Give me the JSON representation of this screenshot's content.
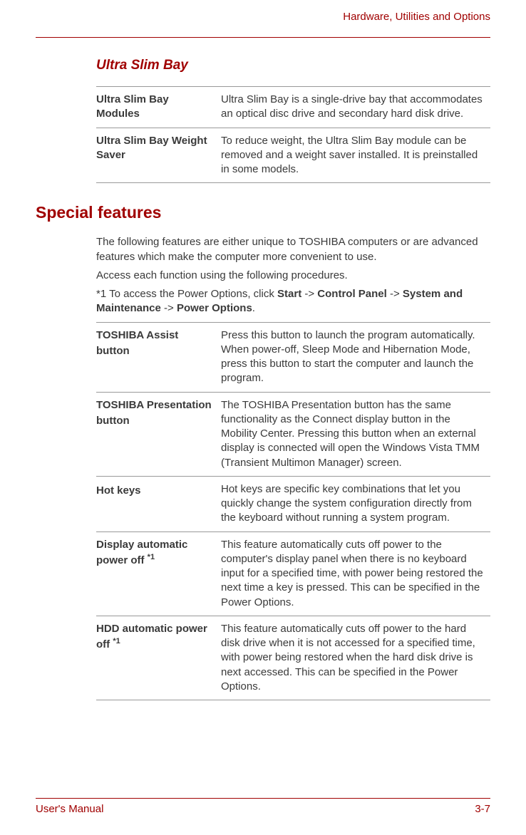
{
  "header": {
    "chapter": "Hardware, Utilities and Options"
  },
  "colors": {
    "accent": "#a00000",
    "body_text": "#3a3a3a",
    "table_border": "#999999",
    "background": "#ffffff"
  },
  "typography": {
    "body_fontsize": 15,
    "h2_fontsize": 23,
    "h3_fontsize": 19,
    "font_family": "Arial"
  },
  "section1": {
    "title": "Ultra Slim Bay",
    "rows": [
      {
        "label": "Ultra Slim Bay Modules",
        "desc": "Ultra Slim Bay is a single-drive bay that accommodates an optical disc drive and secondary hard disk drive."
      },
      {
        "label": "Ultra Slim Bay Weight Saver",
        "desc": "To reduce weight, the Ultra Slim Bay module can be removed and a weight saver installed. It is preinstalled in some models."
      }
    ]
  },
  "section2": {
    "title": "Special features",
    "intro1": "The following features are either unique to TOSHIBA computers or are advanced features which make the computer more convenient to use.",
    "intro2": "Access each function using the following procedures.",
    "intro3_prefix": "*1 To access the Power Options, click ",
    "intro3_b1": "Start",
    "intro3_sep": " -> ",
    "intro3_b2": "Control Panel",
    "intro3_b3": "System and Maintenance",
    "intro3_b4": "Power Options",
    "intro3_suffix": ".",
    "rows": [
      {
        "label": "TOSHIBA Assist button",
        "sup": "",
        "desc": "Press this button to launch the program automatically. When power-off, Sleep Mode and Hibernation Mode, press this button to start the computer and launch the program."
      },
      {
        "label": "TOSHIBA Presentation button",
        "sup": "",
        "desc": "The TOSHIBA Presentation button has the same functionality as the Connect display button in the Mobility Center. Pressing this button when an external display is connected will open the Windows Vista TMM (Transient Multimon Manager) screen."
      },
      {
        "label": "Hot keys",
        "sup": "",
        "desc": "Hot keys are specific key combinations that let you quickly change the system configuration directly from the keyboard without running a system program."
      },
      {
        "label": "Display automatic power off ",
        "sup": "*1",
        "desc": "This feature automatically cuts off power to the computer's display panel when there is no keyboard input for a specified time, with power being restored the next time a key is pressed. This can be specified in the Power Options."
      },
      {
        "label": "HDD automatic power off ",
        "sup": "*1",
        "desc": "This feature automatically cuts off power to the hard disk drive when it is not accessed for a specified time, with power being restored when the hard disk drive is next accessed. This can be specified in the Power Options."
      }
    ]
  },
  "footer": {
    "left": "User's Manual",
    "right": "3-7"
  }
}
